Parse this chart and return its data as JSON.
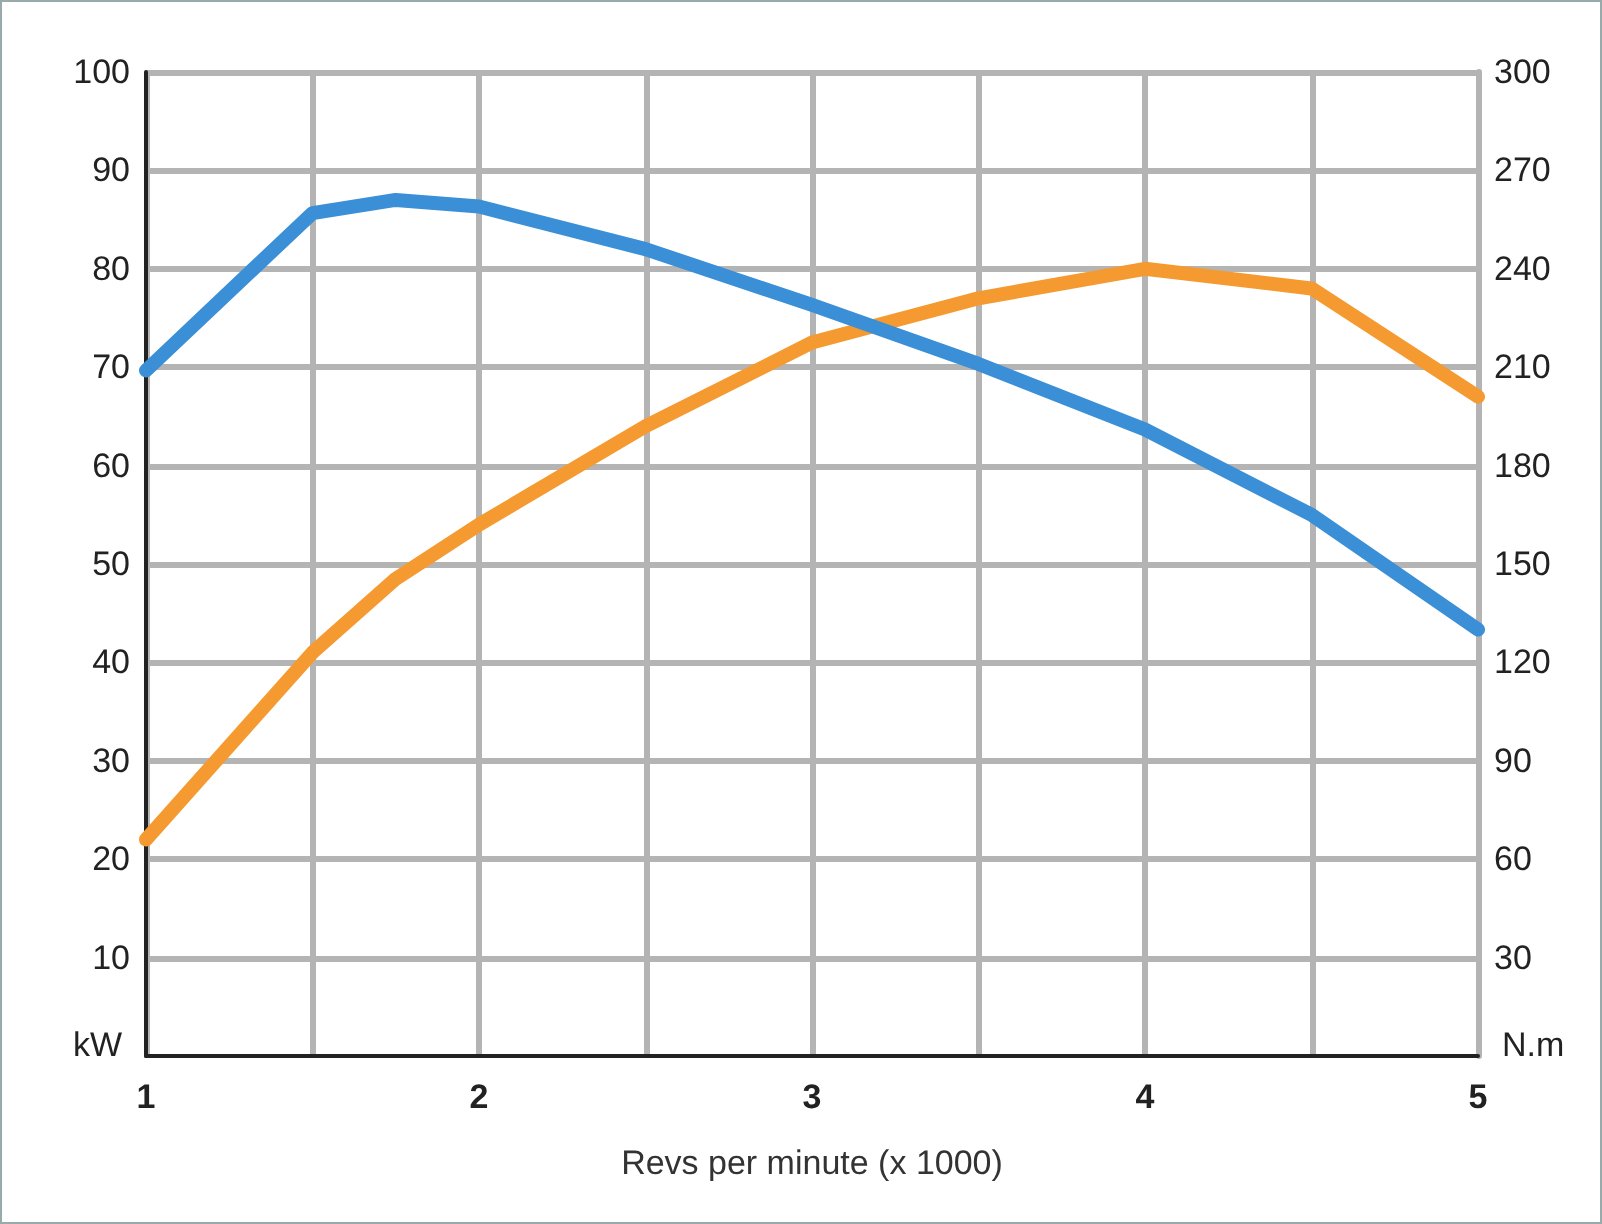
{
  "chart_data": {
    "type": "line",
    "xlabel": "Revs per minute (x 1000)",
    "ylabel": "kW",
    "y2label": "N.m",
    "xlim": [
      1,
      5
    ],
    "xticks": [
      1,
      {
        "value": 1.5,
        "label": null
      },
      2,
      {
        "value": 2.5,
        "label": null
      },
      3,
      {
        "value": 3.5,
        "label": null
      },
      4,
      {
        "value": 4.5,
        "label": null
      },
      5
    ],
    "ylim": [
      0,
      100
    ],
    "yticks": [
      10,
      20,
      30,
      40,
      50,
      60,
      70,
      80,
      90,
      100
    ],
    "y2lim": [
      0,
      300
    ],
    "y2ticks": [
      30,
      60,
      90,
      120,
      150,
      180,
      210,
      240,
      270,
      300
    ],
    "grid": true,
    "line_style": "solid",
    "series": [
      {
        "color": "#f59a30",
        "x": [
          1,
          1.5,
          1.75,
          2,
          2.5,
          3,
          3.5,
          4,
          4.5,
          5
        ],
        "values": [
          22,
          41,
          48.5,
          54,
          64,
          72.5,
          77,
          80,
          78,
          67
        ]
      },
      {
        "color": "#3a8fd6",
        "axis": "y2",
        "x": [
          1,
          1.5,
          1.75,
          2,
          2.5,
          3,
          3.5,
          4,
          4.5,
          5
        ],
        "values": [
          209,
          257,
          261,
          259,
          246,
          229,
          211,
          191,
          165,
          130
        ]
      }
    ]
  }
}
